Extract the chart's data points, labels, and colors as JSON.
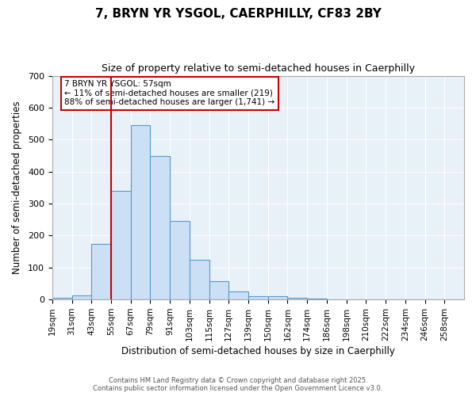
{
  "title_line1": "7, BRYN YR YSGOL, CAERPHILLY, CF83 2BY",
  "title_line2": "Size of property relative to semi-detached houses in Caerphilly",
  "xlabel": "Distribution of semi-detached houses by size in Caerphilly",
  "ylabel": "Number of semi-detached properties",
  "bar_labels": [
    "19sqm",
    "31sqm",
    "43sqm",
    "55sqm",
    "67sqm",
    "79sqm",
    "91sqm",
    "103sqm",
    "115sqm",
    "127sqm",
    "139sqm",
    "150sqm",
    "162sqm",
    "174sqm",
    "186sqm",
    "198sqm",
    "210sqm",
    "222sqm",
    "234sqm",
    "246sqm",
    "258sqm"
  ],
  "bar_values": [
    5,
    12,
    175,
    340,
    545,
    450,
    245,
    125,
    58,
    25,
    10,
    10,
    5,
    2,
    0,
    0,
    0,
    0,
    0,
    0,
    0
  ],
  "bar_color": "#cce0f5",
  "bar_edge_color": "#5599cc",
  "axes_background_color": "#e8f0f8",
  "figure_background_color": "#ffffff",
  "grid_color": "#ffffff",
  "red_line_index": 3,
  "annotation_text": "7 BRYN YR YSGOL: 57sqm\n← 11% of semi-detached houses are smaller (219)\n88% of semi-detached houses are larger (1,741) →",
  "annotation_box_color": "#ffffff",
  "annotation_box_edge_color": "#cc0000",
  "ylim": [
    0,
    700
  ],
  "yticks": [
    0,
    100,
    200,
    300,
    400,
    500,
    600,
    700
  ],
  "footer_line1": "Contains HM Land Registry data © Crown copyright and database right 2025.",
  "footer_line2": "Contains public sector information licensed under the Open Government Licence v3.0."
}
